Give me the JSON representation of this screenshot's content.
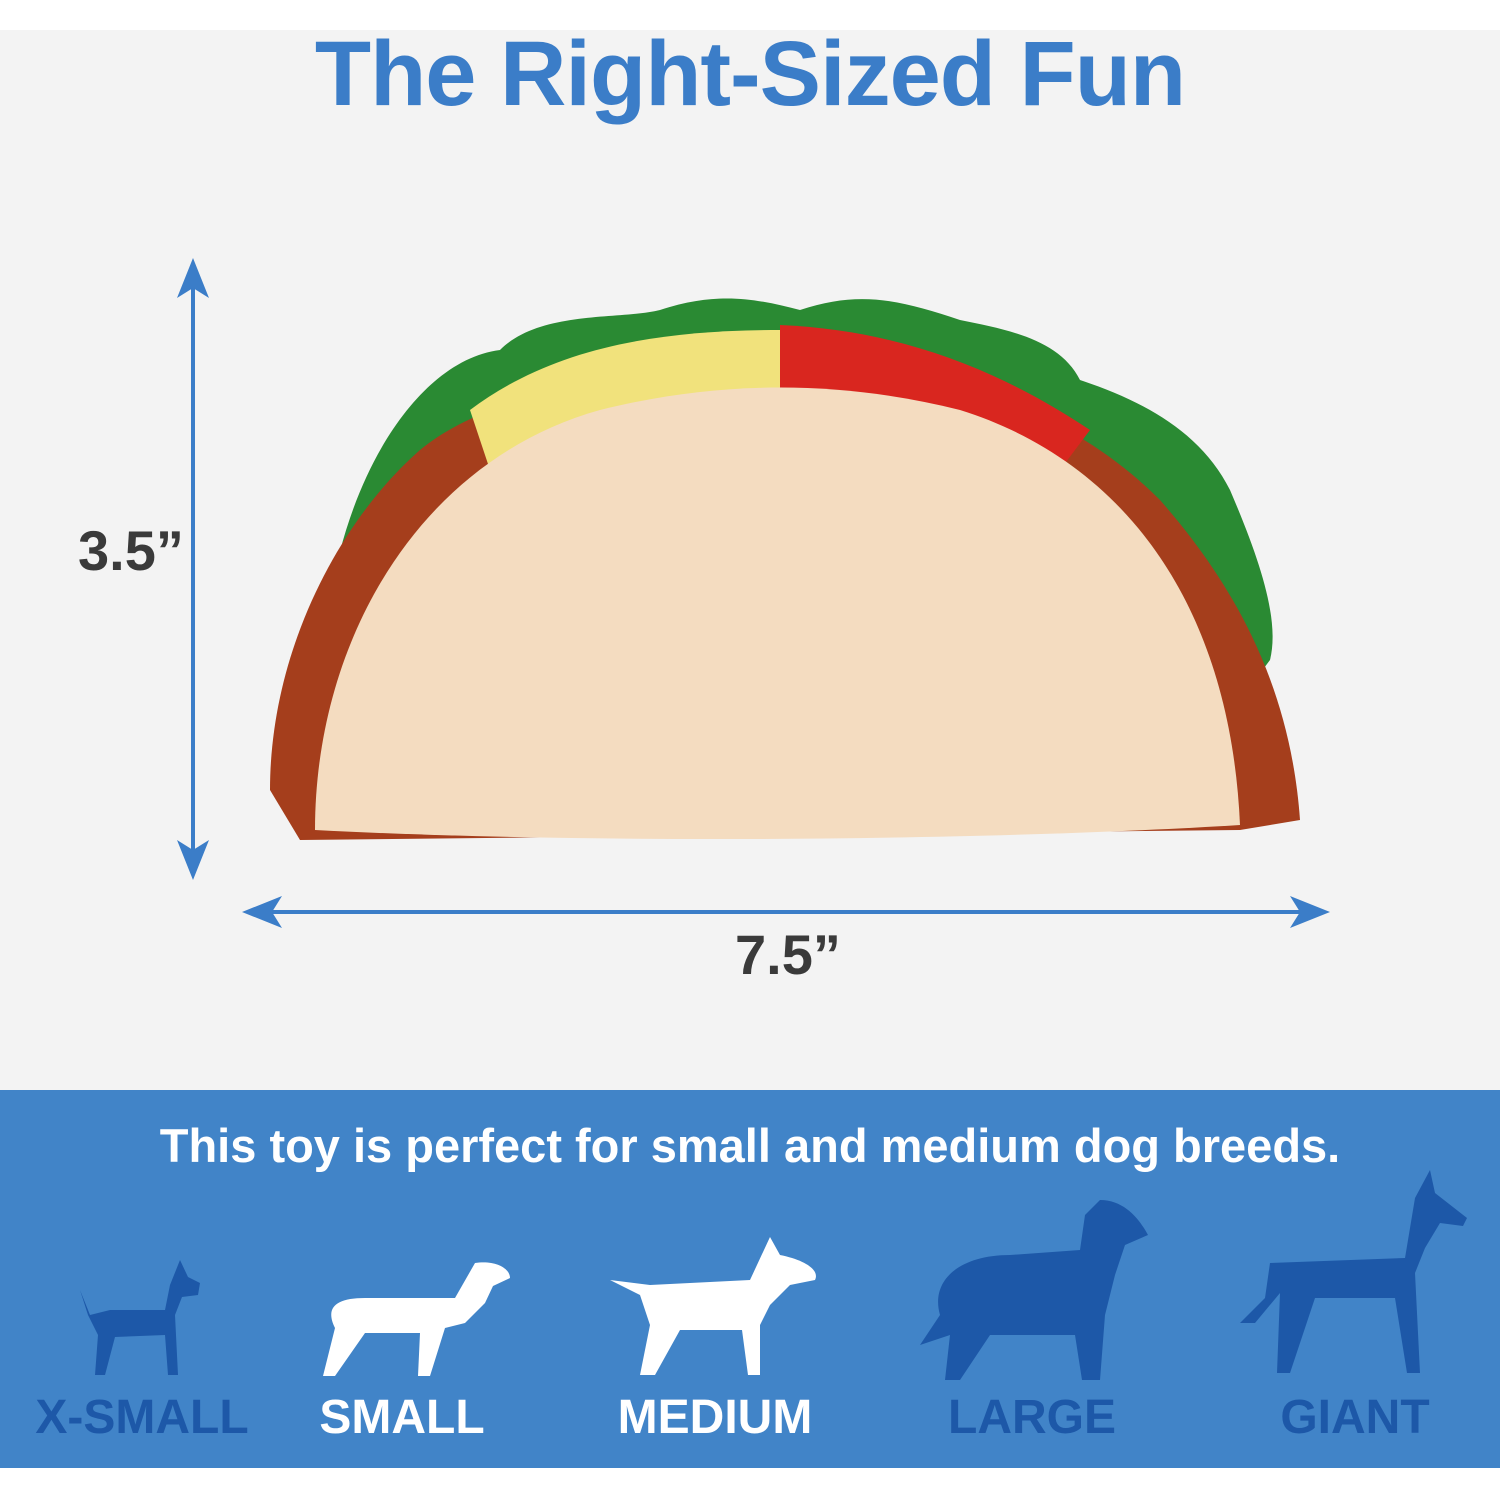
{
  "title": "The Right-Sized Fun",
  "dimensions": {
    "height": "3.5”",
    "width": "7.5”"
  },
  "tagline": "This toy is perfect for small and medium dog breeds.",
  "sizes": [
    {
      "label": "X-SMALL",
      "suitable": false
    },
    {
      "label": "SMALL",
      "suitable": true
    },
    {
      "label": "MEDIUM",
      "suitable": true
    },
    {
      "label": "LARGE",
      "suitable": false
    },
    {
      "label": "GIANT",
      "suitable": false
    }
  ],
  "colors": {
    "accent": "#3b7dc8",
    "band": "#4184c8",
    "unsuitable": "#1d58a8",
    "suitable": "#ffffff"
  }
}
